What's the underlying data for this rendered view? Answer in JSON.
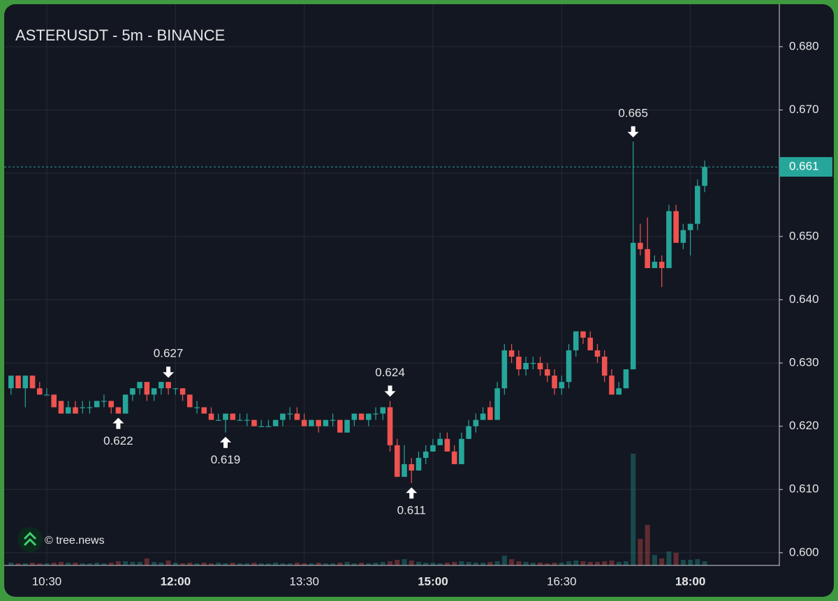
{
  "chart_data": {
    "type": "candlestick",
    "title": "ASTERUSDT - 5m - BINANCE",
    "watermark": "© tree.news",
    "up_color": "#26a69a",
    "down_color": "#ef5350",
    "grid": true,
    "ylim": [
      0.598,
      0.6865
    ],
    "yticks": [
      {
        "value": 0.6,
        "label": "0.600"
      },
      {
        "value": 0.61,
        "label": "0.610"
      },
      {
        "value": 0.62,
        "label": "0.620"
      },
      {
        "value": 0.63,
        "label": "0.630"
      },
      {
        "value": 0.64,
        "label": "0.640"
      },
      {
        "value": 0.65,
        "label": "0.650"
      },
      {
        "value": 0.66,
        "label": "0.660"
      },
      {
        "value": 0.67,
        "label": "0.670"
      },
      {
        "value": 0.68,
        "label": "0.680"
      }
    ],
    "last_price": 0.661,
    "categories": [
      null,
      null,
      null,
      null,
      null,
      "10:30",
      null,
      null,
      null,
      null,
      null,
      null,
      null,
      null,
      null,
      null,
      null,
      null,
      null,
      null,
      null,
      null,
      null,
      "12:00",
      null,
      null,
      null,
      null,
      null,
      null,
      null,
      null,
      null,
      null,
      null,
      null,
      null,
      null,
      null,
      null,
      null,
      "13:30",
      null,
      null,
      null,
      null,
      null,
      null,
      null,
      null,
      null,
      null,
      null,
      null,
      null,
      null,
      null,
      null,
      null,
      "15:00",
      null,
      null,
      null,
      null,
      null,
      null,
      null,
      null,
      null,
      null,
      null,
      null,
      null,
      null,
      null,
      null,
      null,
      "16:30",
      null,
      null,
      null,
      null,
      null,
      null,
      null,
      null,
      null,
      null,
      null,
      null,
      null,
      null,
      null,
      null,
      null,
      "18:00",
      null,
      null
    ],
    "candles": [
      {
        "o": 0.626,
        "h": 0.628,
        "l": 0.625,
        "c": 0.628,
        "v": 4
      },
      {
        "o": 0.628,
        "h": 0.628,
        "l": 0.626,
        "c": 0.626,
        "v": 3
      },
      {
        "o": 0.626,
        "h": 0.628,
        "l": 0.623,
        "c": 0.628,
        "v": 3
      },
      {
        "o": 0.628,
        "h": 0.628,
        "l": 0.626,
        "c": 0.626,
        "v": 4
      },
      {
        "o": 0.626,
        "h": 0.627,
        "l": 0.625,
        "c": 0.625,
        "v": 3
      },
      {
        "o": 0.625,
        "h": 0.626,
        "l": 0.625,
        "c": 0.625,
        "v": 3
      },
      {
        "o": 0.625,
        "h": 0.625,
        "l": 0.623,
        "c": 0.623,
        "v": 4
      },
      {
        "o": 0.624,
        "h": 0.624,
        "l": 0.622,
        "c": 0.622,
        "v": 5
      },
      {
        "o": 0.622,
        "h": 0.624,
        "l": 0.622,
        "c": 0.623,
        "v": 4
      },
      {
        "o": 0.623,
        "h": 0.624,
        "l": 0.622,
        "c": 0.622,
        "v": 4
      },
      {
        "o": 0.623,
        "h": 0.624,
        "l": 0.622,
        "c": 0.623,
        "v": 3
      },
      {
        "o": 0.623,
        "h": 0.624,
        "l": 0.622,
        "c": 0.623,
        "v": 3
      },
      {
        "o": 0.623,
        "h": 0.624,
        "l": 0.623,
        "c": 0.624,
        "v": 4
      },
      {
        "o": 0.624,
        "h": 0.625,
        "l": 0.623,
        "c": 0.624,
        "v": 3
      },
      {
        "o": 0.624,
        "h": 0.624,
        "l": 0.622,
        "c": 0.623,
        "v": 4
      },
      {
        "o": 0.623,
        "h": 0.623,
        "l": 0.622,
        "c": 0.622,
        "v": 6
      },
      {
        "o": 0.622,
        "h": 0.625,
        "l": 0.622,
        "c": 0.625,
        "v": 6
      },
      {
        "o": 0.625,
        "h": 0.626,
        "l": 0.624,
        "c": 0.626,
        "v": 5
      },
      {
        "o": 0.626,
        "h": 0.627,
        "l": 0.625,
        "c": 0.627,
        "v": 5
      },
      {
        "o": 0.627,
        "h": 0.627,
        "l": 0.624,
        "c": 0.625,
        "v": 10
      },
      {
        "o": 0.625,
        "h": 0.626,
        "l": 0.624,
        "c": 0.626,
        "v": 5
      },
      {
        "o": 0.626,
        "h": 0.627,
        "l": 0.625,
        "c": 0.627,
        "v": 4
      },
      {
        "o": 0.627,
        "h": 0.627,
        "l": 0.625,
        "c": 0.626,
        "v": 7
      },
      {
        "o": 0.626,
        "h": 0.626,
        "l": 0.625,
        "c": 0.626,
        "v": 4
      },
      {
        "o": 0.626,
        "h": 0.626,
        "l": 0.624,
        "c": 0.625,
        "v": 3
      },
      {
        "o": 0.625,
        "h": 0.625,
        "l": 0.623,
        "c": 0.623,
        "v": 4
      },
      {
        "o": 0.623,
        "h": 0.624,
        "l": 0.622,
        "c": 0.623,
        "v": 3
      },
      {
        "o": 0.623,
        "h": 0.623,
        "l": 0.622,
        "c": 0.622,
        "v": 4
      },
      {
        "o": 0.622,
        "h": 0.623,
        "l": 0.621,
        "c": 0.621,
        "v": 3
      },
      {
        "o": 0.621,
        "h": 0.622,
        "l": 0.621,
        "c": 0.621,
        "v": 4
      },
      {
        "o": 0.621,
        "h": 0.622,
        "l": 0.619,
        "c": 0.622,
        "v": 3
      },
      {
        "o": 0.622,
        "h": 0.622,
        "l": 0.621,
        "c": 0.621,
        "v": 4
      },
      {
        "o": 0.621,
        "h": 0.622,
        "l": 0.621,
        "c": 0.621,
        "v": 3
      },
      {
        "o": 0.621,
        "h": 0.622,
        "l": 0.62,
        "c": 0.621,
        "v": 3
      },
      {
        "o": 0.621,
        "h": 0.621,
        "l": 0.62,
        "c": 0.62,
        "v": 4
      },
      {
        "o": 0.62,
        "h": 0.621,
        "l": 0.62,
        "c": 0.62,
        "v": 3
      },
      {
        "o": 0.62,
        "h": 0.621,
        "l": 0.62,
        "c": 0.62,
        "v": 3
      },
      {
        "o": 0.62,
        "h": 0.621,
        "l": 0.62,
        "c": 0.621,
        "v": 4
      },
      {
        "o": 0.621,
        "h": 0.622,
        "l": 0.62,
        "c": 0.622,
        "v": 3
      },
      {
        "o": 0.622,
        "h": 0.623,
        "l": 0.621,
        "c": 0.622,
        "v": 3
      },
      {
        "o": 0.622,
        "h": 0.623,
        "l": 0.621,
        "c": 0.621,
        "v": 4
      },
      {
        "o": 0.621,
        "h": 0.622,
        "l": 0.62,
        "c": 0.62,
        "v": 3
      },
      {
        "o": 0.62,
        "h": 0.621,
        "l": 0.62,
        "c": 0.621,
        "v": 3
      },
      {
        "o": 0.621,
        "h": 0.621,
        "l": 0.619,
        "c": 0.62,
        "v": 4
      },
      {
        "o": 0.62,
        "h": 0.621,
        "l": 0.62,
        "c": 0.621,
        "v": 3
      },
      {
        "o": 0.621,
        "h": 0.622,
        "l": 0.62,
        "c": 0.621,
        "v": 3
      },
      {
        "o": 0.621,
        "h": 0.621,
        "l": 0.619,
        "c": 0.619,
        "v": 4
      },
      {
        "o": 0.619,
        "h": 0.621,
        "l": 0.619,
        "c": 0.621,
        "v": 5
      },
      {
        "o": 0.621,
        "h": 0.622,
        "l": 0.62,
        "c": 0.622,
        "v": 3
      },
      {
        "o": 0.622,
        "h": 0.622,
        "l": 0.621,
        "c": 0.621,
        "v": 4
      },
      {
        "o": 0.621,
        "h": 0.622,
        "l": 0.62,
        "c": 0.622,
        "v": 3
      },
      {
        "o": 0.622,
        "h": 0.623,
        "l": 0.621,
        "c": 0.622,
        "v": 4
      },
      {
        "o": 0.622,
        "h": 0.623,
        "l": 0.621,
        "c": 0.623,
        "v": 5
      },
      {
        "o": 0.623,
        "h": 0.624,
        "l": 0.616,
        "c": 0.617,
        "v": 6
      },
      {
        "o": 0.617,
        "h": 0.618,
        "l": 0.612,
        "c": 0.612,
        "v": 8
      },
      {
        "o": 0.612,
        "h": 0.617,
        "l": 0.612,
        "c": 0.614,
        "v": 9
      },
      {
        "o": 0.614,
        "h": 0.615,
        "l": 0.611,
        "c": 0.613,
        "v": 7
      },
      {
        "o": 0.613,
        "h": 0.616,
        "l": 0.613,
        "c": 0.615,
        "v": 5
      },
      {
        "o": 0.615,
        "h": 0.617,
        "l": 0.614,
        "c": 0.616,
        "v": 4
      },
      {
        "o": 0.616,
        "h": 0.618,
        "l": 0.616,
        "c": 0.617,
        "v": 4
      },
      {
        "o": 0.617,
        "h": 0.619,
        "l": 0.617,
        "c": 0.618,
        "v": 3
      },
      {
        "o": 0.618,
        "h": 0.619,
        "l": 0.616,
        "c": 0.616,
        "v": 4
      },
      {
        "o": 0.616,
        "h": 0.617,
        "l": 0.614,
        "c": 0.614,
        "v": 5
      },
      {
        "o": 0.614,
        "h": 0.619,
        "l": 0.614,
        "c": 0.618,
        "v": 6
      },
      {
        "o": 0.618,
        "h": 0.621,
        "l": 0.618,
        "c": 0.62,
        "v": 5
      },
      {
        "o": 0.62,
        "h": 0.622,
        "l": 0.619,
        "c": 0.621,
        "v": 4
      },
      {
        "o": 0.621,
        "h": 0.623,
        "l": 0.621,
        "c": 0.622,
        "v": 4
      },
      {
        "o": 0.623,
        "h": 0.624,
        "l": 0.621,
        "c": 0.621,
        "v": 5
      },
      {
        "o": 0.621,
        "h": 0.627,
        "l": 0.621,
        "c": 0.626,
        "v": 6
      },
      {
        "o": 0.626,
        "h": 0.633,
        "l": 0.625,
        "c": 0.632,
        "v": 14
      },
      {
        "o": 0.632,
        "h": 0.633,
        "l": 0.63,
        "c": 0.631,
        "v": 9
      },
      {
        "o": 0.631,
        "h": 0.632,
        "l": 0.628,
        "c": 0.629,
        "v": 6
      },
      {
        "o": 0.629,
        "h": 0.631,
        "l": 0.628,
        "c": 0.63,
        "v": 5
      },
      {
        "o": 0.63,
        "h": 0.631,
        "l": 0.629,
        "c": 0.63,
        "v": 4
      },
      {
        "o": 0.63,
        "h": 0.631,
        "l": 0.628,
        "c": 0.629,
        "v": 4
      },
      {
        "o": 0.629,
        "h": 0.63,
        "l": 0.627,
        "c": 0.628,
        "v": 3
      },
      {
        "o": 0.628,
        "h": 0.629,
        "l": 0.625,
        "c": 0.626,
        "v": 4
      },
      {
        "o": 0.626,
        "h": 0.628,
        "l": 0.625,
        "c": 0.627,
        "v": 4
      },
      {
        "o": 0.627,
        "h": 0.633,
        "l": 0.626,
        "c": 0.632,
        "v": 6
      },
      {
        "o": 0.632,
        "h": 0.635,
        "l": 0.631,
        "c": 0.635,
        "v": 7
      },
      {
        "o": 0.635,
        "h": 0.635,
        "l": 0.633,
        "c": 0.634,
        "v": 6
      },
      {
        "o": 0.634,
        "h": 0.635,
        "l": 0.632,
        "c": 0.632,
        "v": 5
      },
      {
        "o": 0.632,
        "h": 0.633,
        "l": 0.63,
        "c": 0.631,
        "v": 5
      },
      {
        "o": 0.631,
        "h": 0.632,
        "l": 0.627,
        "c": 0.628,
        "v": 6
      },
      {
        "o": 0.628,
        "h": 0.629,
        "l": 0.625,
        "c": 0.625,
        "v": 7
      },
      {
        "o": 0.625,
        "h": 0.627,
        "l": 0.625,
        "c": 0.626,
        "v": 5
      },
      {
        "o": 0.626,
        "h": 0.629,
        "l": 0.626,
        "c": 0.629,
        "v": 6
      },
      {
        "o": 0.629,
        "h": 0.665,
        "l": 0.629,
        "c": 0.649,
        "v": 160
      },
      {
        "o": 0.649,
        "h": 0.652,
        "l": 0.647,
        "c": 0.648,
        "v": 38
      },
      {
        "o": 0.648,
        "h": 0.653,
        "l": 0.645,
        "c": 0.645,
        "v": 58
      },
      {
        "o": 0.645,
        "h": 0.647,
        "l": 0.645,
        "c": 0.646,
        "v": 15
      },
      {
        "o": 0.646,
        "h": 0.647,
        "l": 0.642,
        "c": 0.645,
        "v": 10
      },
      {
        "o": 0.645,
        "h": 0.655,
        "l": 0.645,
        "c": 0.654,
        "v": 20
      },
      {
        "o": 0.654,
        "h": 0.655,
        "l": 0.649,
        "c": 0.649,
        "v": 18
      },
      {
        "o": 0.649,
        "h": 0.652,
        "l": 0.648,
        "c": 0.651,
        "v": 8
      },
      {
        "o": 0.651,
        "h": 0.652,
        "l": 0.647,
        "c": 0.652,
        "v": 8
      },
      {
        "o": 0.652,
        "h": 0.659,
        "l": 0.651,
        "c": 0.658,
        "v": 9
      },
      {
        "o": 0.658,
        "h": 0.662,
        "l": 0.657,
        "c": 0.661,
        "v": 6
      }
    ],
    "annotations": [
      {
        "candle": 15,
        "value": 0.622,
        "kind": "low"
      },
      {
        "candle": 22,
        "value": 0.627,
        "kind": "high"
      },
      {
        "candle": 30,
        "value": 0.619,
        "kind": "low"
      },
      {
        "candle": 53,
        "value": 0.624,
        "kind": "high"
      },
      {
        "candle": 56,
        "value": 0.611,
        "kind": "low"
      },
      {
        "candle": 87,
        "value": 0.665,
        "kind": "high"
      }
    ]
  }
}
